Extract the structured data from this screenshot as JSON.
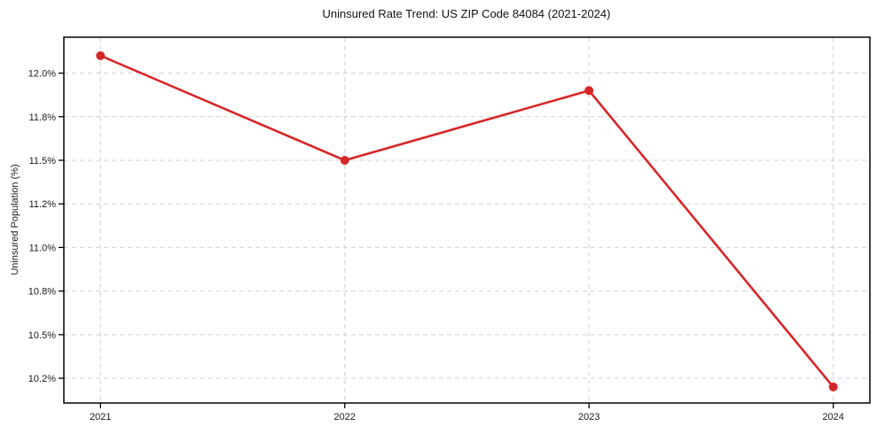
{
  "chart_data": {
    "type": "line",
    "title": "Uninsured Rate Trend: US ZIP Code 84084 (2021-2024)",
    "xlabel": "",
    "ylabel": "Uninsured Population (%)",
    "categories": [
      "2021",
      "2022",
      "2023",
      "2024"
    ],
    "series": [
      {
        "values": [
          12.1,
          11.5,
          11.9,
          10.2
        ],
        "color": "#d62728",
        "marker": "circle",
        "line_width": 2.6,
        "marker_radius": 5
      }
    ],
    "y_ticks": [
      {
        "value": 12.0,
        "label": "12.0%"
      },
      {
        "value": 11.75,
        "label": "11.8%"
      },
      {
        "value": 11.5,
        "label": "11.5%"
      },
      {
        "value": 11.25,
        "label": "11.2%"
      },
      {
        "value": 11.0,
        "label": "11.0%"
      },
      {
        "value": 10.75,
        "label": "10.8%"
      },
      {
        "value": 10.5,
        "label": "10.5%"
      },
      {
        "value": 10.25,
        "label": "10.2%"
      }
    ],
    "ylim": [
      10.108,
      12.206
    ],
    "xlim_index": [
      -0.15,
      3.15
    ],
    "grid": true,
    "grid_style": "dashed",
    "grid_color": "#d0d0d0",
    "axis_color": "#000000",
    "text_color": "#1a1a1a",
    "legend": "none"
  }
}
